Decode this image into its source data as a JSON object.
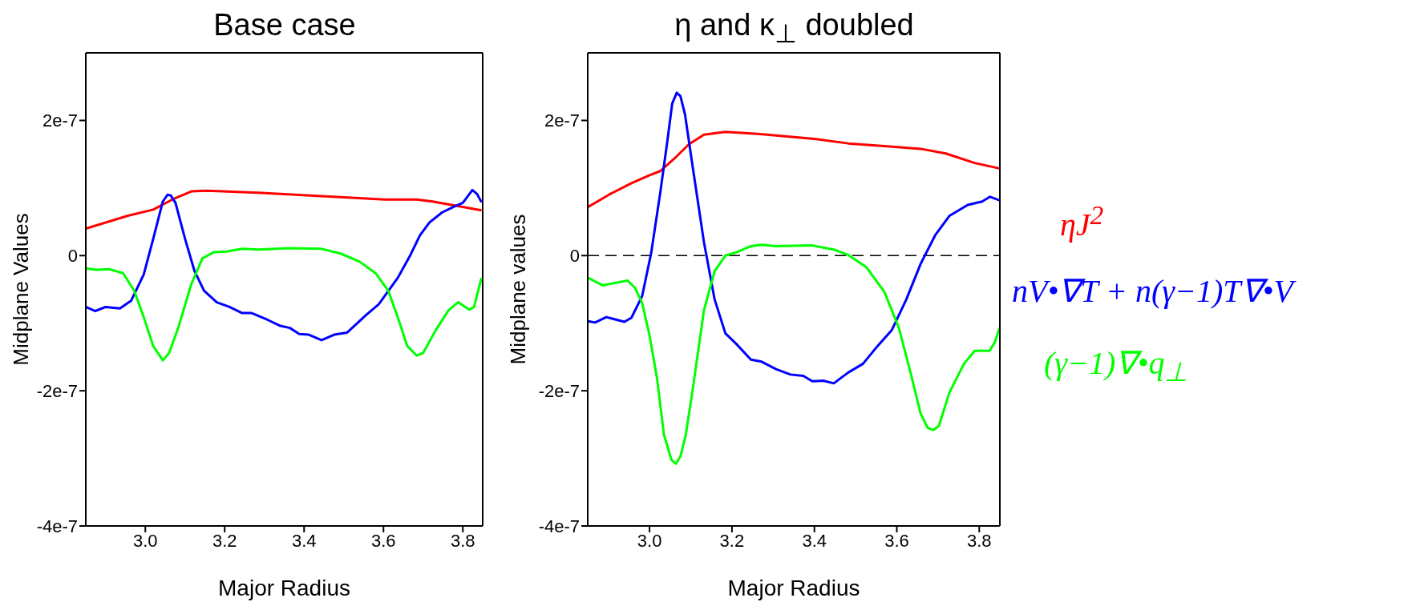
{
  "chart_data": [
    {
      "type": "line",
      "title": "Base case",
      "xlabel": "Major Radius",
      "ylabel": "Midplane Values",
      "xlim": [
        2.85,
        3.85
      ],
      "ylim": [
        -4e-07,
        3e-07
      ],
      "xticks": [
        {
          "value": 3,
          "label": "3.0"
        },
        {
          "value": 3.2,
          "label": "3.2"
        },
        {
          "value": 3.4,
          "label": "3.4"
        },
        {
          "value": 3.6,
          "label": "3.6"
        },
        {
          "value": 3.8,
          "label": "3.8"
        }
      ],
      "yticks": [
        {
          "value": -4e-07,
          "label": "-4e-7"
        },
        {
          "value": -2e-07,
          "label": "-2e-7"
        },
        {
          "value": 0,
          "label": "0"
        },
        {
          "value": 2e-07,
          "label": "2e-7"
        }
      ],
      "series": [
        {
          "color": "#ff0000",
          "x": [
            2.85,
            2.956,
            3.02,
            3.068,
            3.116,
            3.156,
            3.284,
            3.444,
            3.604,
            3.684,
            3.724,
            3.78,
            3.847
          ],
          "values": [
            4e-08,
            5.9e-08,
            6.8e-08,
            8.3e-08,
            9.5e-08,
            9.6e-08,
            9.3e-08,
            8.8e-08,
            8.3e-08,
            8.3e-08,
            8e-08,
            7.4e-08,
            6.7e-08
          ]
        },
        {
          "color": "#0000ff",
          "x": [
            2.85,
            2.874,
            2.9,
            2.936,
            2.964,
            2.996,
            3.02,
            3.044,
            3.056,
            3.064,
            3.076,
            3.1,
            3.124,
            3.148,
            3.18,
            3.212,
            3.244,
            3.268,
            3.308,
            3.34,
            3.364,
            3.388,
            3.412,
            3.444,
            3.476,
            3.508,
            3.556,
            3.588,
            3.636,
            3.668,
            3.692,
            3.716,
            3.748,
            3.78,
            3.8,
            3.824,
            3.836,
            3.847
          ],
          "values": [
            -7.6e-08,
            -8.2e-08,
            -7.6e-08,
            -7.8e-08,
            -6.7e-08,
            -2.8e-08,
            2.5e-08,
            8e-08,
            9e-08,
            8.9e-08,
            7.8e-08,
            2.5e-08,
            -2.3e-08,
            -5.2e-08,
            -6.9e-08,
            -7.6e-08,
            -8.5e-08,
            -8.5e-08,
            -9.5e-08,
            -1.04e-07,
            -1.07e-07,
            -1.16e-07,
            -1.17e-07,
            -1.25e-07,
            -1.17e-07,
            -1.14e-07,
            -8.8e-08,
            -7.2e-08,
            -3.3e-08,
            1e-09,
            3e-08,
            4.9e-08,
            6.4e-08,
            7.3e-08,
            7.8e-08,
            9.7e-08,
            9.1e-08,
            7.9e-08
          ]
        },
        {
          "color": "#00ff00",
          "x": [
            2.85,
            2.876,
            2.908,
            2.944,
            2.972,
            2.996,
            3.02,
            3.044,
            3.06,
            3.084,
            3.116,
            3.144,
            3.172,
            3.204,
            3.244,
            3.284,
            3.364,
            3.444,
            3.492,
            3.54,
            3.58,
            3.612,
            3.636,
            3.66,
            3.684,
            3.7,
            3.732,
            3.764,
            3.788,
            3.816,
            3.828,
            3.847
          ],
          "values": [
            -1.9e-08,
            -2.1e-08,
            -2e-08,
            -2.6e-08,
            -5.2e-08,
            -9.1e-08,
            -1.34e-07,
            -1.55e-07,
            -1.44e-07,
            -1.05e-07,
            -4.2e-08,
            -4e-09,
            5e-09,
            6e-09,
            1e-08,
            9e-09,
            1.1e-08,
            1e-08,
            3e-09,
            -9e-09,
            -2.6e-08,
            -5.2e-08,
            -9.1e-08,
            -1.34e-07,
            -1.48e-07,
            -1.44e-07,
            -1.1e-07,
            -8.1e-08,
            -6.9e-08,
            -8e-08,
            -7.6e-08,
            -3.3e-08
          ]
        }
      ]
    },
    {
      "type": "line",
      "title": "η  and κ$_{⊥}$ doubled",
      "xlabel": "Major Radius",
      "ylabel": "Midplane values",
      "xlim": [
        2.85,
        3.85
      ],
      "ylim": [
        -4e-07,
        3e-07
      ],
      "legend": "right",
      "xticks": [
        {
          "value": 3,
          "label": "3.0"
        },
        {
          "value": 3.2,
          "label": "3.2"
        },
        {
          "value": 3.4,
          "label": "3.4"
        },
        {
          "value": 3.6,
          "label": "3.6"
        },
        {
          "value": 3.8,
          "label": "3.8"
        }
      ],
      "yticks": [
        {
          "value": -4e-07,
          "label": "-4e-7"
        },
        {
          "value": -2e-07,
          "label": "-2e-7"
        },
        {
          "value": 0,
          "label": "0"
        },
        {
          "value": 2e-07,
          "label": "2e-7"
        }
      ],
      "ref_lines": [
        {
          "axis": "y",
          "value": 0,
          "line_style": "dashed",
          "color": "#000000"
        }
      ],
      "series": [
        {
          "name": "ηJ$^{2}$",
          "color": "#ff0000",
          "x": [
            2.851,
            2.904,
            2.956,
            3.0,
            3.026,
            3.061,
            3.096,
            3.132,
            3.184,
            3.263,
            3.395,
            3.482,
            3.57,
            3.658,
            3.719,
            3.789,
            3.849
          ],
          "values": [
            7.2e-08,
            9.1e-08,
            1.07e-07,
            1.19e-07,
            1.25e-07,
            1.44e-07,
            1.65e-07,
            1.79e-07,
            1.83e-07,
            1.8e-07,
            1.73e-07,
            1.66e-07,
            1.62e-07,
            1.58e-07,
            1.51e-07,
            1.37e-07,
            1.29e-07
          ]
        },
        {
          "name": "nV•∇T + n(γ−1)T∇•V",
          "color": "#0000ff",
          "x": [
            2.851,
            2.868,
            2.895,
            2.939,
            2.956,
            2.982,
            3.004,
            3.026,
            3.044,
            3.055,
            3.066,
            3.075,
            3.086,
            3.105,
            3.132,
            3.158,
            3.184,
            3.211,
            3.246,
            3.272,
            3.307,
            3.342,
            3.373,
            3.395,
            3.421,
            3.447,
            3.482,
            3.518,
            3.553,
            3.588,
            3.623,
            3.658,
            3.693,
            3.728,
            3.772,
            3.807,
            3.826,
            3.849
          ],
          "values": [
            -9.7e-08,
            -9.9e-08,
            -9.1e-08,
            -9.8e-08,
            -9.2e-08,
            -6e-08,
            4e-09,
            9.3e-08,
            1.73e-07,
            2.25e-07,
            2.41e-07,
            2.36e-07,
            2.09e-07,
            1.3e-07,
            2e-08,
            -6.5e-08,
            -1.15e-07,
            -1.31e-07,
            -1.54e-07,
            -1.57e-07,
            -1.68e-07,
            -1.76e-07,
            -1.78e-07,
            -1.86e-07,
            -1.85e-07,
            -1.89e-07,
            -1.73e-07,
            -1.6e-07,
            -1.34e-07,
            -1.1e-07,
            -6.5e-08,
            -1.2e-08,
            3e-08,
            5.9e-08,
            7.5e-08,
            8e-08,
            8.7e-08,
            8.2e-08
          ]
        },
        {
          "name": "(γ−1)∇•q$_{⊥}$",
          "color": "#00ff00",
          "x": [
            2.851,
            2.886,
            2.912,
            2.947,
            2.965,
            2.982,
            3.0,
            3.018,
            3.035,
            3.053,
            3.064,
            3.075,
            3.088,
            3.105,
            3.132,
            3.158,
            3.184,
            3.211,
            3.246,
            3.272,
            3.307,
            3.395,
            3.447,
            3.482,
            3.526,
            3.57,
            3.605,
            3.632,
            3.658,
            3.675,
            3.689,
            3.702,
            3.728,
            3.763,
            3.789,
            3.825,
            3.838,
            3.849
          ],
          "values": [
            -3.3e-08,
            -4.4e-08,
            -4.1e-08,
            -3.7e-08,
            -4.8e-08,
            -7e-08,
            -1.18e-07,
            -1.81e-07,
            -2.65e-07,
            -3.02e-07,
            -3.08e-07,
            -2.97e-07,
            -2.65e-07,
            -1.97e-07,
            -8.1e-08,
            -2.3e-08,
            0,
            5e-09,
            1.4e-08,
            1.6e-08,
            1.4e-08,
            1.5e-08,
            9e-09,
            1e-09,
            -1.7e-08,
            -5.4e-08,
            -1.07e-07,
            -1.7e-07,
            -2.34e-07,
            -2.55e-07,
            -2.58e-07,
            -2.52e-07,
            -2.02e-07,
            -1.6e-07,
            -1.41e-07,
            -1.41e-07,
            -1.28e-07,
            -1.07e-07
          ]
        }
      ]
    }
  ]
}
